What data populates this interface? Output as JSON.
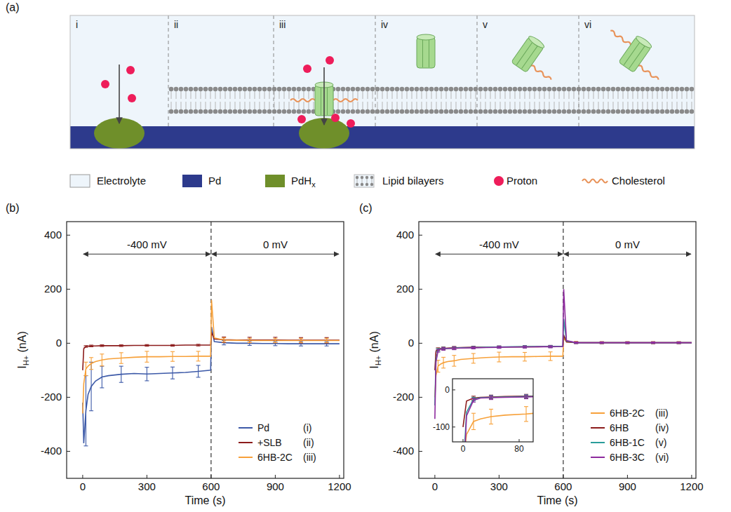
{
  "diagram": {
    "panel": "(a)",
    "sections": [
      "i",
      "ii",
      "iii",
      "iv",
      "v",
      "vi"
    ],
    "legend": [
      {
        "label": "Electrolyte"
      },
      {
        "label": "Pd"
      },
      {
        "label": "PdH",
        "sub": "x"
      },
      {
        "label": "Lipid bilayers"
      },
      {
        "label": "Proton"
      },
      {
        "label": "Cholesterol"
      }
    ]
  },
  "chart_data": [
    {
      "type": "line",
      "panel": "(b)",
      "xlabel": "Time (s)",
      "ylabel": {
        "main": "I",
        "sub": "H+",
        "unit": " (nA)"
      },
      "xlim": [
        -75,
        1220
      ],
      "xticks": [
        0,
        300,
        600,
        900,
        1200
      ],
      "ylim": [
        -500,
        450
      ],
      "yticks": [
        -400,
        -200,
        0,
        200,
        400
      ],
      "grid": false,
      "legend": "lower right",
      "vlines": [
        600
      ],
      "annotations": [
        {
          "text": "-400 mV",
          "x": [
            0,
            600
          ],
          "y": 330
        },
        {
          "text": "0 mV",
          "x": [
            600,
            1200
          ],
          "y": 330
        }
      ],
      "x": [
        0,
        5,
        15,
        25,
        40,
        60,
        90,
        120,
        180,
        240,
        300,
        360,
        420,
        480,
        540,
        598,
        602,
        615,
        660,
        720,
        780,
        840,
        900,
        960,
        1020,
        1080,
        1140,
        1200
      ],
      "series": [
        {
          "name": "Pd",
          "label": "(i)",
          "color": "#3d5aa8",
          "values": [
            -220,
            -370,
            -250,
            -190,
            -160,
            -140,
            -125,
            -120,
            -115,
            -112,
            -114,
            -112,
            -110,
            -108,
            -104,
            -100,
            60,
            6,
            2,
            0,
            0,
            -1,
            -1,
            -2,
            -2,
            -2,
            -2,
            -2
          ],
          "errors": [
            null,
            null,
            130,
            null,
            90,
            null,
            40,
            null,
            30,
            null,
            25,
            null,
            22,
            null,
            22,
            null,
            null,
            null,
            8,
            null,
            8,
            null,
            8,
            null,
            8,
            null,
            8,
            null
          ]
        },
        {
          "name": "+SLB",
          "label": "(ii)",
          "color": "#8c1c1c",
          "values": [
            -100,
            -20,
            -12,
            -11,
            -10,
            -10,
            -9,
            -9,
            -9,
            -8,
            -8,
            -8,
            -8,
            -7,
            -7,
            -7,
            40,
            16,
            13,
            12,
            12,
            12,
            12,
            11,
            11,
            11,
            11,
            11
          ],
          "errors": [
            null,
            null,
            3,
            null,
            3,
            null,
            3,
            null,
            3,
            null,
            3,
            null,
            3,
            null,
            3,
            null,
            null,
            null,
            10,
            null,
            10,
            null,
            10,
            null,
            10,
            null,
            10,
            null
          ]
        },
        {
          "name": "6HB-2C",
          "label": "(iii)",
          "color": "#f7a13a",
          "values": [
            -260,
            -150,
            -95,
            -85,
            -75,
            -68,
            -62,
            -58,
            -55,
            -52,
            -50,
            -50,
            -49,
            -49,
            -48,
            -48,
            160,
            20,
            12,
            11,
            10,
            10,
            10,
            10,
            10,
            10,
            10,
            10
          ],
          "errors": [
            null,
            null,
            25,
            null,
            22,
            null,
            22,
            null,
            20,
            null,
            20,
            null,
            18,
            null,
            18,
            null,
            null,
            null,
            8,
            null,
            8,
            null,
            8,
            null,
            8,
            null,
            8,
            null
          ]
        }
      ]
    },
    {
      "type": "line",
      "panel": "(c)",
      "xlabel": "Time (s)",
      "ylabel": {
        "main": "I",
        "sub": "H+",
        "unit": " (nA)"
      },
      "xlim": [
        -75,
        1220
      ],
      "xticks": [
        0,
        300,
        600,
        900,
        1200
      ],
      "ylim": [
        -500,
        450
      ],
      "yticks": [
        -400,
        -200,
        0,
        200,
        400
      ],
      "grid": false,
      "legend": "lower right",
      "vlines": [
        600
      ],
      "annotations": [
        {
          "text": "-400 mV",
          "x": [
            0,
            600
          ],
          "y": 330
        },
        {
          "text": "0 mV",
          "x": [
            600,
            1200
          ],
          "y": 330
        }
      ],
      "inset": {
        "xlim": [
          -15,
          100
        ],
        "ylim": [
          -140,
          30
        ],
        "xticks": [
          0,
          80
        ],
        "yticks": [
          -100,
          0
        ]
      },
      "x": [
        0,
        5,
        15,
        25,
        40,
        60,
        90,
        120,
        180,
        240,
        300,
        360,
        420,
        480,
        540,
        598,
        602,
        615,
        660,
        720,
        780,
        840,
        900,
        960,
        1020,
        1080,
        1140,
        1200
      ],
      "series": [
        {
          "name": "6HB-2C",
          "label": "(iii)",
          "color": "#f7a13a",
          "values": [
            -200,
            -120,
            -85,
            -78,
            -72,
            -68,
            -65,
            -60,
            -56,
            -53,
            -51,
            -50,
            -50,
            -49,
            -48,
            -48,
            20,
            5,
            3,
            2,
            2,
            2,
            2,
            2,
            2,
            2,
            2,
            2
          ],
          "errors": [
            null,
            null,
            22,
            null,
            20,
            null,
            20,
            null,
            18,
            null,
            18,
            null,
            16,
            null,
            16,
            null,
            null,
            null,
            4,
            null,
            4,
            null,
            4,
            null,
            4,
            null,
            4,
            null
          ]
        },
        {
          "name": "6HB",
          "label": "(iv)",
          "color": "#8c1c1c",
          "values": [
            -100,
            -30,
            -22,
            -20,
            -19,
            -18,
            -17,
            -16,
            -15,
            -15,
            -14,
            -14,
            -13,
            -13,
            -12,
            -12,
            30,
            5,
            2,
            2,
            2,
            2,
            2,
            2,
            2,
            2,
            2,
            2
          ],
          "errors": [
            null,
            null,
            5,
            null,
            5,
            null,
            5,
            null,
            4,
            null,
            4,
            null,
            4,
            null,
            4,
            null,
            null,
            null,
            3,
            null,
            3,
            null,
            3,
            null,
            3,
            null,
            3,
            null
          ]
        },
        {
          "name": "6HB-1C",
          "label": "(v)",
          "color": "#2a9d9a",
          "values": [
            -230,
            -60,
            -25,
            -21,
            -20,
            -19,
            -18,
            -17,
            -16,
            -15,
            -14,
            -13,
            -13,
            -12,
            -12,
            -11,
            90,
            8,
            2,
            2,
            2,
            2,
            2,
            2,
            2,
            2,
            2,
            2
          ],
          "errors": [
            null,
            null,
            5,
            null,
            5,
            null,
            5,
            null,
            4,
            null,
            4,
            null,
            4,
            null,
            4,
            null,
            null,
            null,
            3,
            null,
            3,
            null,
            3,
            null,
            3,
            null,
            3,
            null
          ]
        },
        {
          "name": "6HB-3C",
          "label": "(vi)",
          "color": "#8e2b9e",
          "values": [
            -280,
            -70,
            -28,
            -22,
            -21,
            -20,
            -19,
            -18,
            -17,
            -16,
            -15,
            -14,
            -14,
            -13,
            -13,
            -12,
            200,
            10,
            2,
            2,
            2,
            2,
            2,
            2,
            2,
            2,
            2,
            2
          ],
          "errors": [
            null,
            null,
            5,
            null,
            5,
            null,
            5,
            null,
            4,
            null,
            4,
            null,
            4,
            null,
            4,
            null,
            null,
            null,
            3,
            null,
            3,
            null,
            3,
            null,
            3,
            null,
            3,
            null
          ]
        }
      ]
    }
  ]
}
